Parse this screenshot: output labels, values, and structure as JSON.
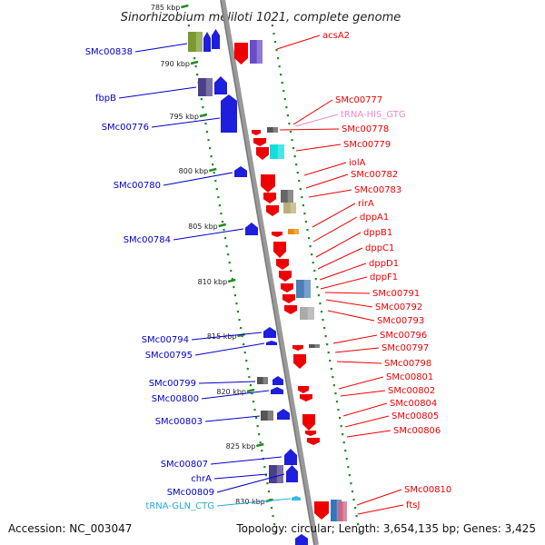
{
  "title": "Sinorhizobium meliloti 1021, complete genome",
  "footer": {
    "accession": "Accession: NC_003047",
    "summary": "Topology: circular; Length: 3,654,135 bp; Genes: 3,425"
  },
  "colors": {
    "minus_label": "#0000cc",
    "plus_label": "#ee0000",
    "trna_plus": "#ee88cc",
    "trna_minus": "#22aadd",
    "tick": "#228b22",
    "backbone": "#999999"
  },
  "ticks": [
    "785 kbp",
    "790 kbp",
    "795 kbp",
    "800 kbp",
    "805 kbp",
    "810 kbp",
    "815 kbp",
    "820 kbp",
    "825 kbp",
    "830 kbp"
  ],
  "minus_labels": [
    {
      "text": "SMc00838",
      "color": "#0000cc"
    },
    {
      "text": "fbpB",
      "color": "#0000cc"
    },
    {
      "text": "SMc00776",
      "color": "#0000cc"
    },
    {
      "text": "SMc00780",
      "color": "#0000cc"
    },
    {
      "text": "SMc00784",
      "color": "#0000cc"
    },
    {
      "text": "SMc00794",
      "color": "#0000cc"
    },
    {
      "text": "SMc00795",
      "color": "#0000cc"
    },
    {
      "text": "SMc00799",
      "color": "#0000cc"
    },
    {
      "text": "SMc00800",
      "color": "#0000cc"
    },
    {
      "text": "SMc00803",
      "color": "#0000cc"
    },
    {
      "text": "SMc00807",
      "color": "#0000cc"
    },
    {
      "text": "chrA",
      "color": "#0000cc"
    },
    {
      "text": "SMc00809",
      "color": "#0000cc"
    },
    {
      "text": "tRNA-GLN_CTG",
      "color": "#22aadd"
    }
  ],
  "plus_labels": [
    {
      "text": "acsA2",
      "color": "#ee0000"
    },
    {
      "text": "SMc00777",
      "color": "#ee0000"
    },
    {
      "text": "tRNA-HIS_GTG",
      "color": "#ee88cc"
    },
    {
      "text": "SMc00778",
      "color": "#ee0000"
    },
    {
      "text": "SMc00779",
      "color": "#ee0000"
    },
    {
      "text": "iolA",
      "color": "#ee0000"
    },
    {
      "text": "SMc00782",
      "color": "#ee0000"
    },
    {
      "text": "SMc00783",
      "color": "#ee0000"
    },
    {
      "text": "rirA",
      "color": "#ee0000"
    },
    {
      "text": "dppA1",
      "color": "#ee0000"
    },
    {
      "text": "dppB1",
      "color": "#ee0000"
    },
    {
      "text": "dppC1",
      "color": "#ee0000"
    },
    {
      "text": "dppD1",
      "color": "#ee0000"
    },
    {
      "text": "dppF1",
      "color": "#ee0000"
    },
    {
      "text": "SMc00791",
      "color": "#ee0000"
    },
    {
      "text": "SMc00792",
      "color": "#ee0000"
    },
    {
      "text": "SMc00793",
      "color": "#ee0000"
    },
    {
      "text": "SMc00796",
      "color": "#ee0000"
    },
    {
      "text": "SMc00797",
      "color": "#ee0000"
    },
    {
      "text": "SMc00798",
      "color": "#ee0000"
    },
    {
      "text": "SMc00801",
      "color": "#ee0000"
    },
    {
      "text": "SMc00802",
      "color": "#ee0000"
    },
    {
      "text": "SMc00804",
      "color": "#ee0000"
    },
    {
      "text": "SMc00805",
      "color": "#ee0000"
    },
    {
      "text": "SMc00806",
      "color": "#ee0000"
    },
    {
      "text": "SMc00810",
      "color": "#ee0000"
    },
    {
      "text": "ftsJ",
      "color": "#ee0000"
    }
  ]
}
